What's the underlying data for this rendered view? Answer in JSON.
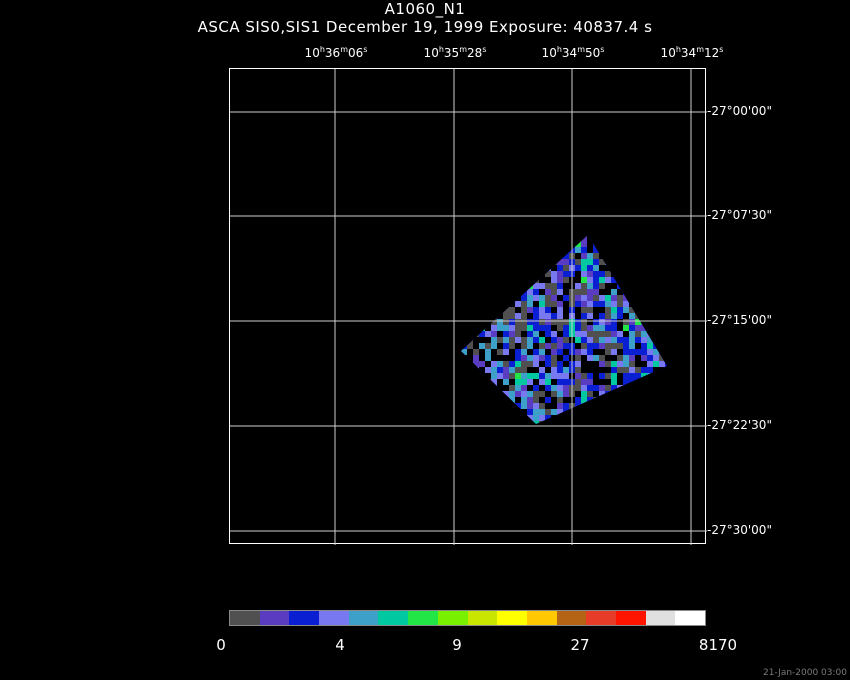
{
  "header": {
    "title": "A1060_N1",
    "subtitle": "ASCA SIS0,SIS1 December 19, 1999 Exposure: 40837.4 s"
  },
  "ra_labels": [
    {
      "h": "10",
      "m": "36",
      "s": "06"
    },
    {
      "h": "10",
      "m": "35",
      "s": "28"
    },
    {
      "h": "10",
      "m": "34",
      "s": "50"
    },
    {
      "h": "10",
      "m": "34",
      "s": "12"
    }
  ],
  "dec_labels": [
    "-27°00'00\"",
    "-27°07'30\"",
    "-27°15'00\"",
    "-27°22'30\"",
    "-27°30'00\""
  ],
  "colorbar": {
    "colors": [
      "#505050",
      "#5a3cc0",
      "#0a1ed2",
      "#7878f0",
      "#3ca0c8",
      "#00c8a0",
      "#22e646",
      "#78f000",
      "#c8e600",
      "#ffff00",
      "#ffc800",
      "#b46414",
      "#e63c28",
      "#ff1400",
      "#e0e0e0",
      "#ffffff"
    ],
    "labels": [
      "0",
      "4",
      "9",
      "27",
      "8170"
    ]
  },
  "timestamp": "21-Jan-2000 03:00"
}
